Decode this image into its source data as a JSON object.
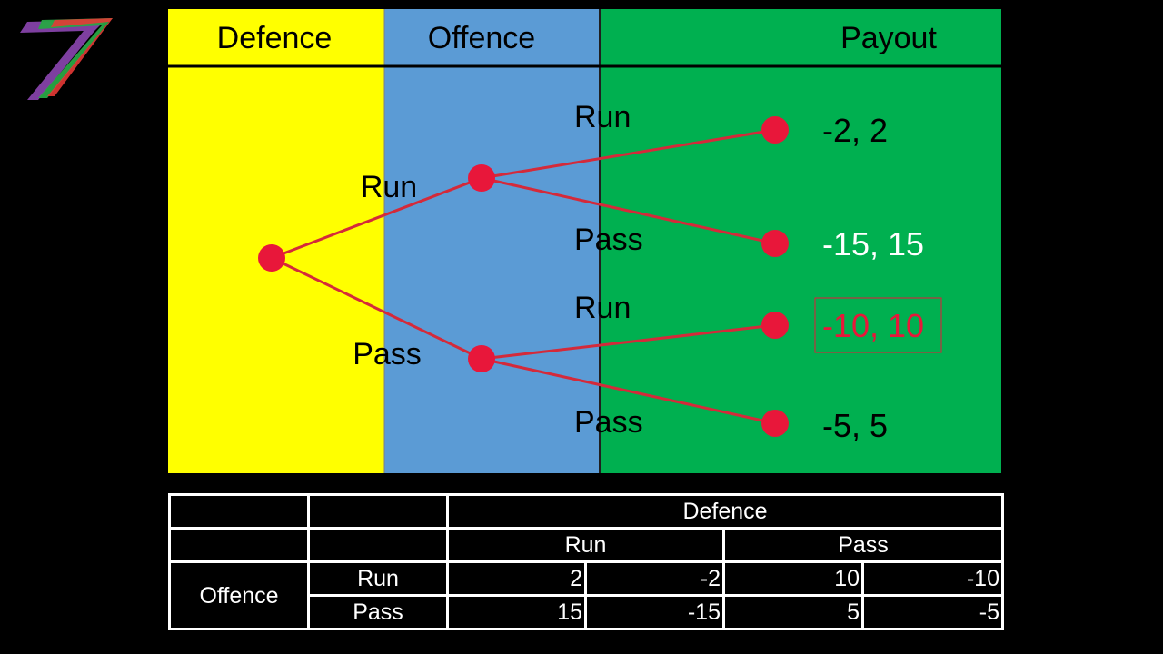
{
  "columns": {
    "defence": "Defence",
    "offence": "Offence",
    "payout": "Payout"
  },
  "colors": {
    "defence_bg": "#FFFF00",
    "offence_bg": "#5B9BD5",
    "payout_bg": "#00B050",
    "node": "#E8173A",
    "edge": "#D42A3A",
    "highlight": "#E8173A"
  },
  "tree": {
    "root_branches": {
      "run": "Run",
      "pass": "Pass"
    },
    "offence_branches": {
      "run_run": "Run",
      "run_pass": "Pass",
      "pass_run": "Run",
      "pass_pass": "Pass"
    },
    "payoffs": {
      "run_run": "-2, 2",
      "run_pass": "-15, 15",
      "pass_run": "-10, 10",
      "pass_pass": "-5, 5"
    }
  },
  "table": {
    "header_top": "Defence",
    "header_run": "Run",
    "header_pass": "Pass",
    "row_group": "Offence",
    "rows": [
      {
        "label": "Run",
        "values": [
          "2",
          "-2",
          "10",
          "-10"
        ]
      },
      {
        "label": "Pass",
        "values": [
          "15",
          "-15",
          "5",
          "-5"
        ]
      }
    ]
  }
}
